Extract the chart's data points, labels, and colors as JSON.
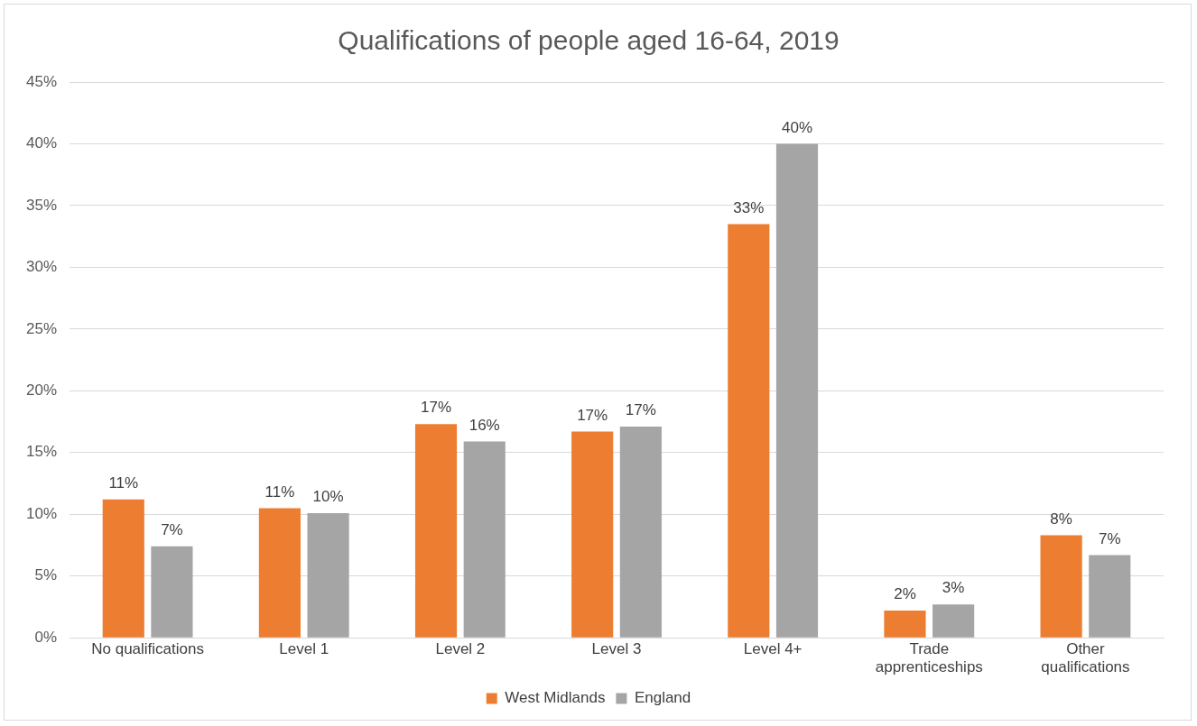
{
  "chart_data": {
    "type": "bar",
    "title": "Qualifications of people aged 16-64, 2019",
    "categories": [
      "No qualifications",
      "Level 1",
      "Level 2",
      "Level 3",
      "Level 4+",
      "Trade apprenticeships",
      "Other qualifications"
    ],
    "series": [
      {
        "name": "West Midlands",
        "color": "#ed7d31",
        "values": [
          11.2,
          10.5,
          17.3,
          16.7,
          33.5,
          2.2,
          8.3
        ],
        "value_labels": [
          "11%",
          "11%",
          "17%",
          "17%",
          "33%",
          "2%",
          "8%"
        ]
      },
      {
        "name": "England",
        "color": "#a5a5a5",
        "values": [
          7.4,
          10.1,
          15.9,
          17.1,
          40.0,
          2.7,
          6.7
        ],
        "value_labels": [
          "7%",
          "10%",
          "16%",
          "17%",
          "40%",
          "3%",
          "7%"
        ]
      }
    ],
    "ylim": [
      0,
      45
    ],
    "yticks": [
      {
        "value": 0,
        "label": "0%"
      },
      {
        "value": 5,
        "label": "5%"
      },
      {
        "value": 10,
        "label": "10%"
      },
      {
        "value": 15,
        "label": "15%"
      },
      {
        "value": 20,
        "label": "20%"
      },
      {
        "value": 25,
        "label": "25%"
      },
      {
        "value": 30,
        "label": "30%"
      },
      {
        "value": 35,
        "label": "35%"
      },
      {
        "value": 40,
        "label": "40%"
      },
      {
        "value": 45,
        "label": "45%"
      }
    ],
    "grid": "y",
    "legend": "bottom"
  }
}
